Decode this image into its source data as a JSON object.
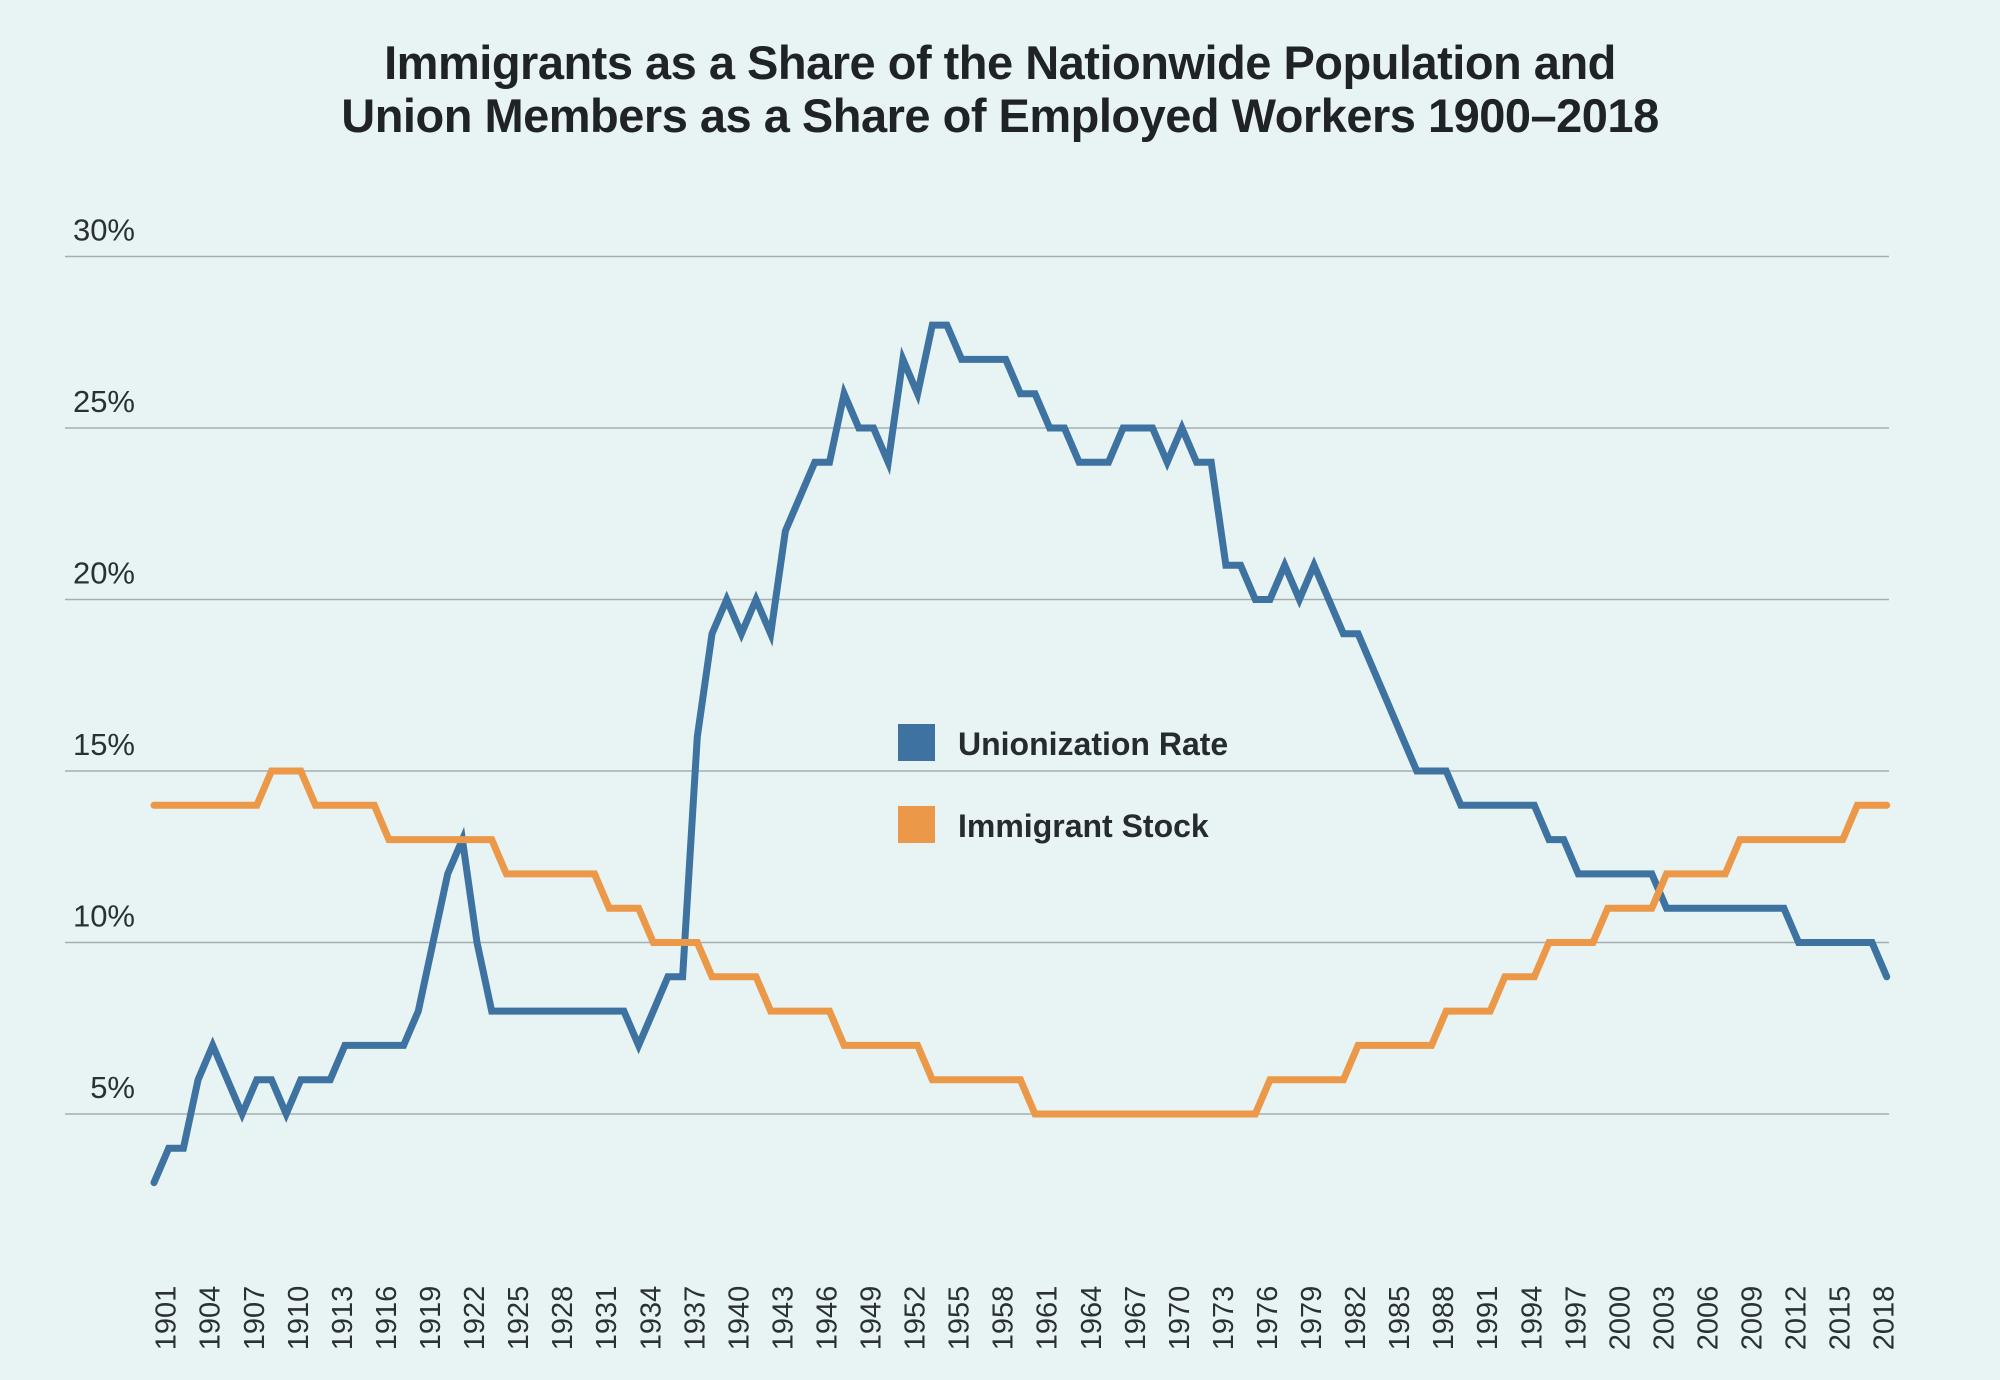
{
  "chart_data": {
    "type": "line",
    "title": [
      "Immigrants as a Share of the Nationwide Population and",
      "Union Members as a Share of Employed Workers 1900–2018"
    ],
    "xlabel": "",
    "ylabel": "",
    "ylim": [
      0,
      30
    ],
    "yticks": [
      5,
      10,
      15,
      20,
      25,
      30
    ],
    "ytick_labels": [
      "5%",
      "10%",
      "15%",
      "20%",
      "25%",
      "30%"
    ],
    "grid": true,
    "legend_position": "center",
    "x_start": 1900,
    "x_end": 2018,
    "xtick_labels": [
      "1901",
      "1904",
      "1907",
      "1910",
      "1913",
      "1916",
      "1919",
      "1922",
      "1925",
      "1928",
      "1931",
      "1934",
      "1937",
      "1940",
      "1943",
      "1946",
      "1949",
      "1952",
      "1955",
      "1958",
      "1961",
      "1964",
      "1967",
      "1970",
      "1973",
      "1976",
      "1979",
      "1982",
      "1985",
      "1988",
      "1991",
      "1994",
      "1997",
      "2000",
      "2003",
      "2006",
      "2009",
      "2012",
      "2015",
      "2018"
    ],
    "series": [
      {
        "name": "Unionization Rate",
        "color": "#3e72a0",
        "values": [
          3,
          4,
          4,
          6,
          7,
          6,
          5,
          6,
          6,
          5,
          6,
          6,
          6,
          7,
          7,
          7,
          7,
          7,
          8,
          10,
          12,
          13,
          10,
          8,
          8,
          8,
          8,
          8,
          8,
          8,
          8,
          8,
          8,
          7,
          8,
          9,
          9,
          16,
          19,
          20,
          19,
          20,
          19,
          22,
          23,
          24,
          24,
          26,
          25,
          25,
          24,
          27,
          26,
          28,
          28,
          27,
          27,
          27,
          27,
          26,
          26,
          25,
          25,
          24,
          24,
          24,
          25,
          25,
          25,
          24,
          25,
          24,
          24,
          21,
          21,
          20,
          20,
          21,
          20,
          21,
          20,
          19,
          19,
          18,
          17,
          16,
          15,
          15,
          15,
          14,
          14,
          14,
          14,
          14,
          14,
          13,
          13,
          12,
          12,
          12,
          12,
          12,
          12,
          11,
          11,
          11,
          11,
          11,
          11,
          11,
          11,
          11,
          10,
          10,
          10,
          10,
          10,
          10,
          9
        ]
      },
      {
        "name": "Immigrant Stock",
        "color": "#eb9848",
        "values": [
          14,
          14,
          14,
          14,
          14,
          14,
          14,
          14,
          15,
          15,
          15,
          14,
          14,
          14,
          14,
          14,
          13,
          13,
          13,
          13,
          13,
          13,
          13,
          13,
          12,
          12,
          12,
          12,
          12,
          12,
          12,
          11,
          11,
          11,
          10,
          10,
          10,
          10,
          9,
          9,
          9,
          9,
          8,
          8,
          8,
          8,
          8,
          7,
          7,
          7,
          7,
          7,
          7,
          6,
          6,
          6,
          6,
          6,
          6,
          6,
          5,
          5,
          5,
          5,
          5,
          5,
          5,
          5,
          5,
          5,
          5,
          5,
          5,
          5,
          5,
          5,
          6,
          6,
          6,
          6,
          6,
          6,
          7,
          7,
          7,
          7,
          7,
          7,
          8,
          8,
          8,
          8,
          9,
          9,
          9,
          10,
          10,
          10,
          10,
          11,
          11,
          11,
          11,
          12,
          12,
          12,
          12,
          12,
          13,
          13,
          13,
          13,
          13,
          13,
          13,
          13,
          14,
          14,
          14
        ]
      }
    ]
  },
  "colors": {
    "background": "#e8f4f4",
    "grid": "#a4aeb0",
    "text": "#1f2326"
  }
}
